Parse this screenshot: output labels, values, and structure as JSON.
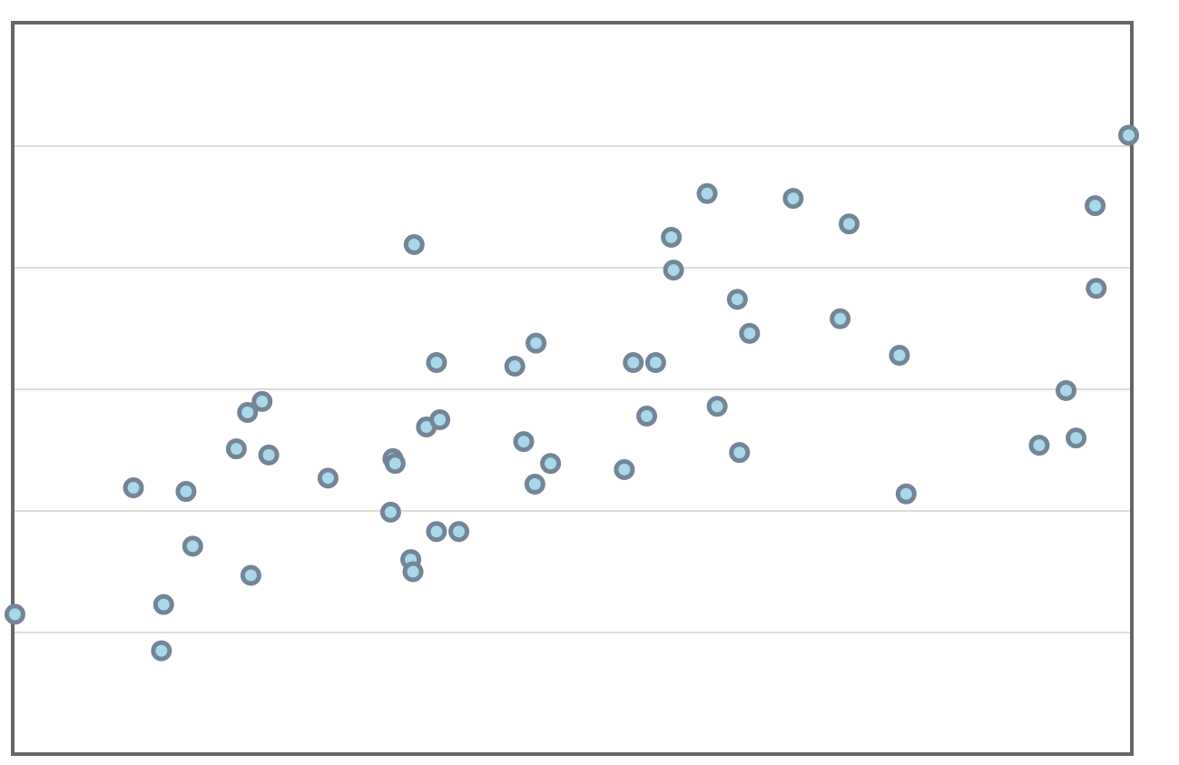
{
  "chart_data": {
    "type": "scatter",
    "x": [
      0.2,
      10.8,
      13.3,
      13.5,
      15.5,
      16.1,
      20.0,
      21.0,
      21.3,
      22.3,
      22.9,
      28.2,
      33.8,
      34.0,
      34.2,
      35.6,
      35.8,
      35.9,
      37.0,
      37.9,
      37.9,
      38.2,
      39.9,
      44.9,
      45.7,
      46.7,
      46.8,
      48.1,
      54.7,
      55.5,
      56.7,
      57.5,
      58.9,
      59.1,
      62.1,
      63.0,
      64.8,
      65.0,
      65.9,
      69.8,
      74.0,
      74.8,
      79.3,
      79.9,
      91.8,
      94.2,
      95.1,
      96.8,
      96.9,
      99.8
    ],
    "values": [
      1.15,
      2.19,
      0.85,
      1.23,
      2.16,
      1.71,
      2.51,
      2.81,
      1.47,
      2.9,
      2.46,
      2.27,
      1.99,
      2.43,
      2.39,
      1.6,
      1.5,
      4.19,
      2.69,
      1.83,
      3.22,
      2.75,
      1.83,
      3.19,
      2.57,
      2.22,
      3.38,
      2.39,
      2.34,
      3.22,
      2.78,
      3.22,
      4.25,
      3.98,
      4.61,
      2.86,
      3.74,
      2.48,
      3.46,
      4.57,
      3.58,
      4.36,
      3.28,
      2.14,
      2.54,
      2.99,
      2.6,
      4.51,
      3.83,
      5.09
    ],
    "color": "#a8d8ea",
    "edge_color": "#738596",
    "xlim": [
      0,
      100
    ],
    "ylim": [
      0,
      6
    ],
    "yticks": [
      1,
      2,
      3,
      4,
      5
    ],
    "grid": true
  }
}
